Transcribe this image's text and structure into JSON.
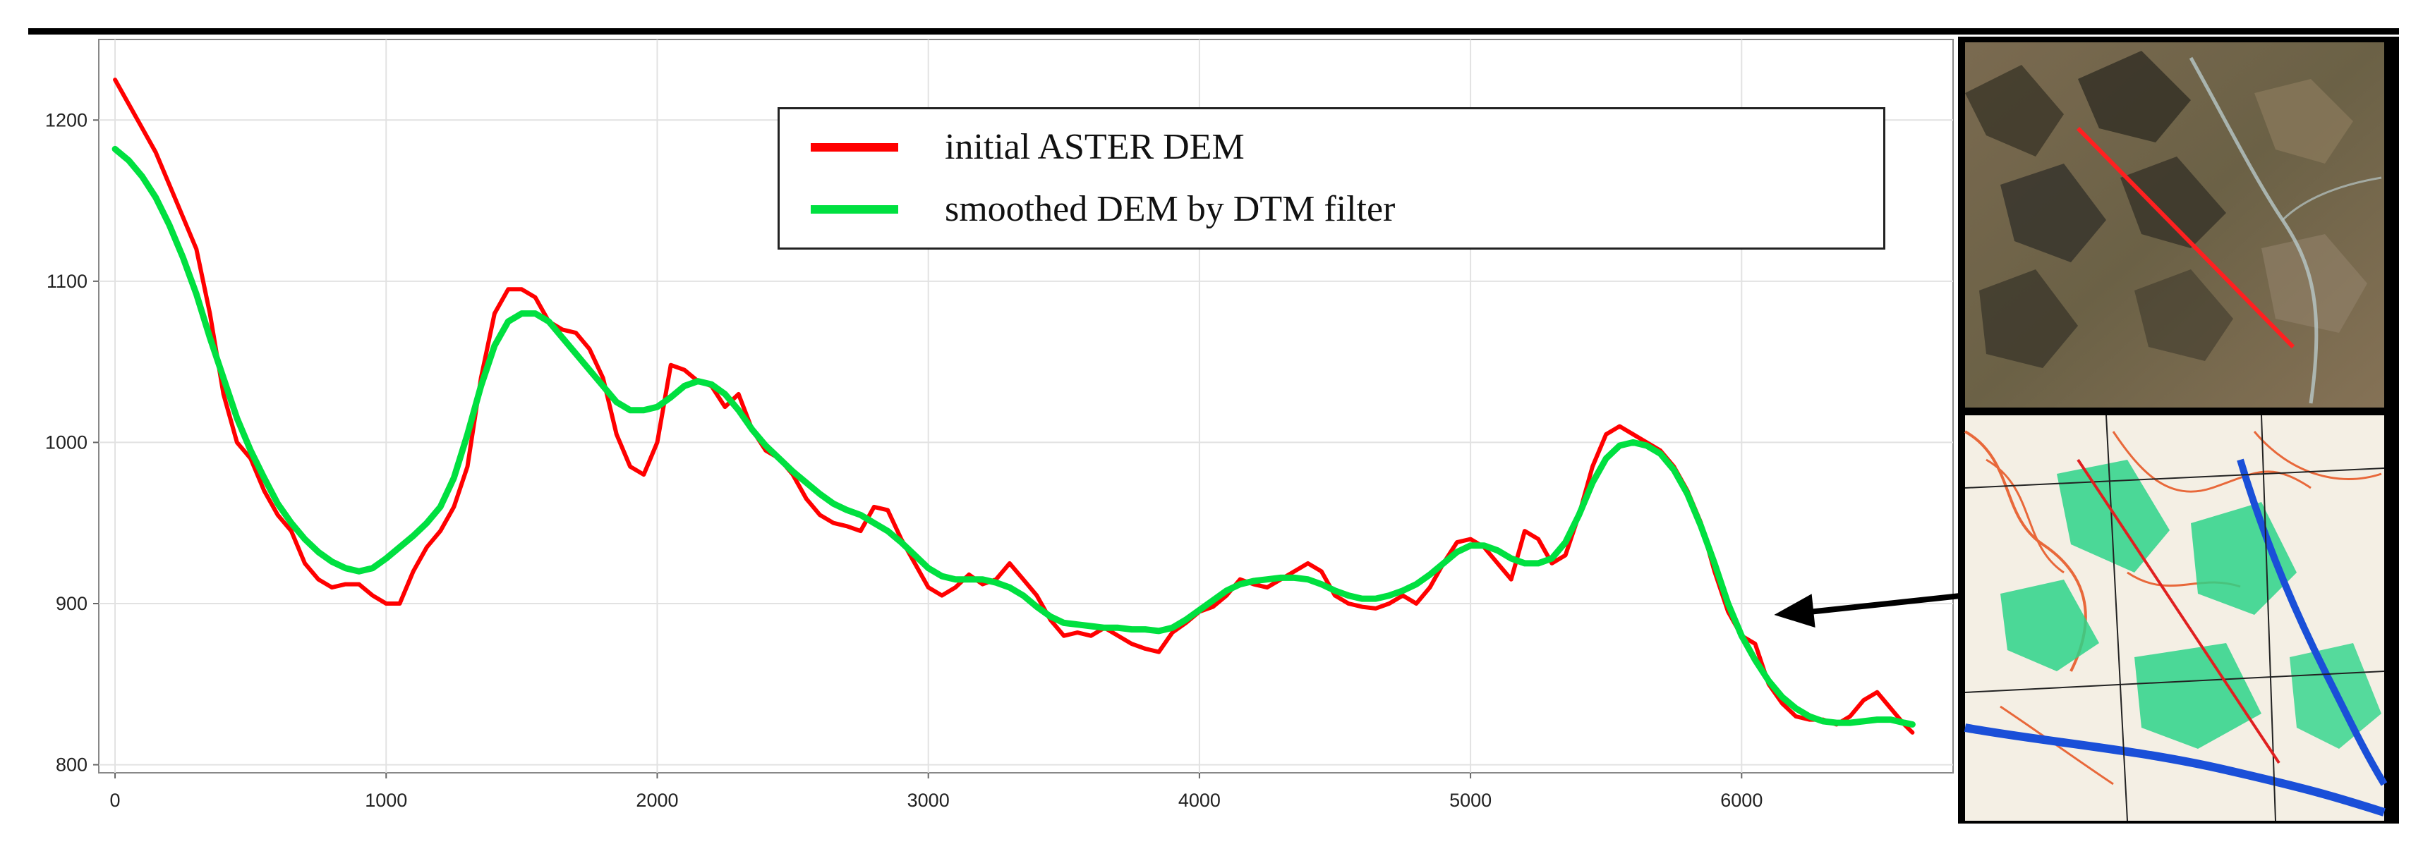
{
  "chart_data": {
    "type": "line",
    "title": "",
    "xlabel": "",
    "ylabel": "",
    "xlim": [
      -60,
      6780
    ],
    "ylim": [
      795,
      1250
    ],
    "x_ticks": [
      0,
      1000,
      2000,
      3000,
      4000,
      5000,
      6000
    ],
    "y_ticks": [
      800,
      900,
      1000,
      1100,
      1200
    ],
    "x_tick_labels": [
      "0",
      "1000",
      "2000",
      "3000",
      "4000",
      "5000",
      "6000"
    ],
    "y_tick_labels": [
      "800",
      "900",
      "1000",
      "1100",
      "1200"
    ],
    "grid": true,
    "legend_position": "top-center",
    "series": [
      {
        "name": "initial ASTER DEM",
        "color": "#ff0000",
        "points": [
          [
            0,
            1225
          ],
          [
            50,
            1210
          ],
          [
            100,
            1195
          ],
          [
            150,
            1180
          ],
          [
            200,
            1160
          ],
          [
            250,
            1140
          ],
          [
            300,
            1120
          ],
          [
            350,
            1080
          ],
          [
            400,
            1030
          ],
          [
            450,
            1000
          ],
          [
            500,
            990
          ],
          [
            550,
            970
          ],
          [
            600,
            955
          ],
          [
            650,
            945
          ],
          [
            700,
            925
          ],
          [
            750,
            915
          ],
          [
            800,
            910
          ],
          [
            850,
            912
          ],
          [
            900,
            912
          ],
          [
            950,
            905
          ],
          [
            1000,
            900
          ],
          [
            1050,
            900
          ],
          [
            1100,
            920
          ],
          [
            1150,
            935
          ],
          [
            1200,
            945
          ],
          [
            1250,
            960
          ],
          [
            1300,
            985
          ],
          [
            1350,
            1040
          ],
          [
            1400,
            1080
          ],
          [
            1450,
            1095
          ],
          [
            1500,
            1095
          ],
          [
            1550,
            1090
          ],
          [
            1600,
            1075
          ],
          [
            1650,
            1070
          ],
          [
            1700,
            1068
          ],
          [
            1750,
            1058
          ],
          [
            1800,
            1040
          ],
          [
            1850,
            1005
          ],
          [
            1900,
            985
          ],
          [
            1950,
            980
          ],
          [
            2000,
            1000
          ],
          [
            2050,
            1048
          ],
          [
            2100,
            1045
          ],
          [
            2150,
            1038
          ],
          [
            2200,
            1035
          ],
          [
            2250,
            1022
          ],
          [
            2300,
            1030
          ],
          [
            2350,
            1008
          ],
          [
            2400,
            995
          ],
          [
            2450,
            990
          ],
          [
            2500,
            980
          ],
          [
            2550,
            965
          ],
          [
            2600,
            955
          ],
          [
            2650,
            950
          ],
          [
            2700,
            948
          ],
          [
            2750,
            945
          ],
          [
            2800,
            960
          ],
          [
            2850,
            958
          ],
          [
            2900,
            940
          ],
          [
            2950,
            925
          ],
          [
            3000,
            910
          ],
          [
            3050,
            905
          ],
          [
            3100,
            910
          ],
          [
            3150,
            918
          ],
          [
            3200,
            912
          ],
          [
            3250,
            915
          ],
          [
            3300,
            925
          ],
          [
            3350,
            915
          ],
          [
            3400,
            905
          ],
          [
            3450,
            890
          ],
          [
            3500,
            880
          ],
          [
            3550,
            882
          ],
          [
            3600,
            880
          ],
          [
            3650,
            885
          ],
          [
            3700,
            880
          ],
          [
            3750,
            875
          ],
          [
            3800,
            872
          ],
          [
            3850,
            870
          ],
          [
            3900,
            882
          ],
          [
            3950,
            888
          ],
          [
            4000,
            895
          ],
          [
            4050,
            898
          ],
          [
            4100,
            905
          ],
          [
            4150,
            915
          ],
          [
            4200,
            912
          ],
          [
            4250,
            910
          ],
          [
            4300,
            915
          ],
          [
            4350,
            920
          ],
          [
            4400,
            925
          ],
          [
            4450,
            920
          ],
          [
            4500,
            905
          ],
          [
            4550,
            900
          ],
          [
            4600,
            898
          ],
          [
            4650,
            897
          ],
          [
            4700,
            900
          ],
          [
            4750,
            905
          ],
          [
            4800,
            900
          ],
          [
            4850,
            910
          ],
          [
            4900,
            925
          ],
          [
            4950,
            938
          ],
          [
            5000,
            940
          ],
          [
            5050,
            935
          ],
          [
            5100,
            925
          ],
          [
            5150,
            915
          ],
          [
            5200,
            945
          ],
          [
            5250,
            940
          ],
          [
            5300,
            925
          ],
          [
            5350,
            930
          ],
          [
            5400,
            955
          ],
          [
            5450,
            985
          ],
          [
            5500,
            1005
          ],
          [
            5550,
            1010
          ],
          [
            5600,
            1005
          ],
          [
            5650,
            1000
          ],
          [
            5700,
            995
          ],
          [
            5750,
            985
          ],
          [
            5800,
            970
          ],
          [
            5850,
            950
          ],
          [
            5900,
            920
          ],
          [
            5950,
            895
          ],
          [
            6000,
            880
          ],
          [
            6050,
            875
          ],
          [
            6100,
            850
          ],
          [
            6150,
            838
          ],
          [
            6200,
            830
          ],
          [
            6250,
            828
          ],
          [
            6300,
            828
          ],
          [
            6350,
            825
          ],
          [
            6400,
            830
          ],
          [
            6450,
            840
          ],
          [
            6500,
            845
          ],
          [
            6550,
            835
          ],
          [
            6600,
            825
          ],
          [
            6630,
            820
          ]
        ]
      },
      {
        "name": "smoothed DEM by DTM filter",
        "color": "#00e040",
        "points": [
          [
            0,
            1182
          ],
          [
            50,
            1175
          ],
          [
            100,
            1165
          ],
          [
            150,
            1152
          ],
          [
            200,
            1135
          ],
          [
            250,
            1115
          ],
          [
            300,
            1092
          ],
          [
            350,
            1065
          ],
          [
            400,
            1040
          ],
          [
            450,
            1015
          ],
          [
            500,
            995
          ],
          [
            550,
            978
          ],
          [
            600,
            962
          ],
          [
            650,
            950
          ],
          [
            700,
            940
          ],
          [
            750,
            932
          ],
          [
            800,
            926
          ],
          [
            850,
            922
          ],
          [
            900,
            920
          ],
          [
            950,
            922
          ],
          [
            1000,
            928
          ],
          [
            1050,
            935
          ],
          [
            1100,
            942
          ],
          [
            1150,
            950
          ],
          [
            1200,
            960
          ],
          [
            1250,
            978
          ],
          [
            1300,
            1005
          ],
          [
            1350,
            1035
          ],
          [
            1400,
            1060
          ],
          [
            1450,
            1075
          ],
          [
            1500,
            1080
          ],
          [
            1550,
            1080
          ],
          [
            1600,
            1075
          ],
          [
            1650,
            1065
          ],
          [
            1700,
            1055
          ],
          [
            1750,
            1045
          ],
          [
            1800,
            1035
          ],
          [
            1850,
            1025
          ],
          [
            1900,
            1020
          ],
          [
            1950,
            1020
          ],
          [
            2000,
            1022
          ],
          [
            2050,
            1028
          ],
          [
            2100,
            1035
          ],
          [
            2150,
            1038
          ],
          [
            2200,
            1036
          ],
          [
            2250,
            1030
          ],
          [
            2300,
            1020
          ],
          [
            2350,
            1008
          ],
          [
            2400,
            998
          ],
          [
            2450,
            990
          ],
          [
            2500,
            982
          ],
          [
            2550,
            975
          ],
          [
            2600,
            968
          ],
          [
            2650,
            962
          ],
          [
            2700,
            958
          ],
          [
            2750,
            955
          ],
          [
            2800,
            950
          ],
          [
            2850,
            945
          ],
          [
            2900,
            938
          ],
          [
            2950,
            930
          ],
          [
            3000,
            922
          ],
          [
            3050,
            917
          ],
          [
            3100,
            915
          ],
          [
            3150,
            915
          ],
          [
            3200,
            915
          ],
          [
            3250,
            913
          ],
          [
            3300,
            910
          ],
          [
            3350,
            905
          ],
          [
            3400,
            898
          ],
          [
            3450,
            892
          ],
          [
            3500,
            888
          ],
          [
            3550,
            887
          ],
          [
            3600,
            886
          ],
          [
            3650,
            885
          ],
          [
            3700,
            885
          ],
          [
            3750,
            884
          ],
          [
            3800,
            884
          ],
          [
            3850,
            883
          ],
          [
            3900,
            885
          ],
          [
            3950,
            890
          ],
          [
            4000,
            896
          ],
          [
            4050,
            902
          ],
          [
            4100,
            908
          ],
          [
            4150,
            912
          ],
          [
            4200,
            914
          ],
          [
            4250,
            915
          ],
          [
            4300,
            916
          ],
          [
            4350,
            916
          ],
          [
            4400,
            915
          ],
          [
            4450,
            912
          ],
          [
            4500,
            908
          ],
          [
            4550,
            905
          ],
          [
            4600,
            903
          ],
          [
            4650,
            903
          ],
          [
            4700,
            905
          ],
          [
            4750,
            908
          ],
          [
            4800,
            912
          ],
          [
            4850,
            918
          ],
          [
            4900,
            925
          ],
          [
            4950,
            932
          ],
          [
            5000,
            936
          ],
          [
            5050,
            936
          ],
          [
            5100,
            933
          ],
          [
            5150,
            928
          ],
          [
            5200,
            925
          ],
          [
            5250,
            925
          ],
          [
            5300,
            928
          ],
          [
            5350,
            938
          ],
          [
            5400,
            955
          ],
          [
            5450,
            975
          ],
          [
            5500,
            990
          ],
          [
            5550,
            998
          ],
          [
            5600,
            1000
          ],
          [
            5650,
            998
          ],
          [
            5700,
            993
          ],
          [
            5750,
            983
          ],
          [
            5800,
            968
          ],
          [
            5850,
            948
          ],
          [
            5900,
            925
          ],
          [
            5950,
            900
          ],
          [
            6000,
            880
          ],
          [
            6050,
            865
          ],
          [
            6100,
            852
          ],
          [
            6150,
            842
          ],
          [
            6200,
            835
          ],
          [
            6250,
            830
          ],
          [
            6300,
            827
          ],
          [
            6350,
            826
          ],
          [
            6400,
            826
          ],
          [
            6450,
            827
          ],
          [
            6500,
            828
          ],
          [
            6550,
            828
          ],
          [
            6600,
            826
          ],
          [
            6630,
            825
          ]
        ]
      }
    ],
    "annotations": [
      {
        "type": "arrow",
        "from": "map inset",
        "to_x": 6120,
        "to_y": 893,
        "color": "#000000"
      }
    ]
  },
  "legend": {
    "entries": [
      {
        "label": "initial ASTER DEM",
        "color": "#ff0000"
      },
      {
        "label": "smoothed DEM by DTM filter",
        "color": "#00e040"
      }
    ]
  },
  "insets": {
    "satellite": {
      "profile_line_color": "#ff2020"
    },
    "topographic_map": {
      "profile_line_color": "#e02020"
    }
  }
}
